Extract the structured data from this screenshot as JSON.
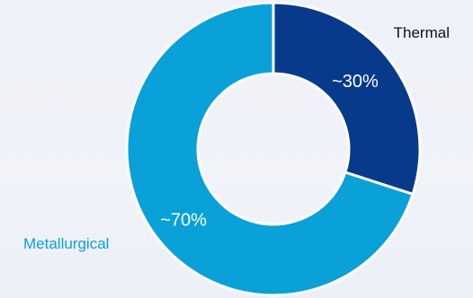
{
  "chart_data": {
    "type": "pie",
    "categories": [
      "Thermal",
      "Metallurgical"
    ],
    "values": [
      30,
      70
    ],
    "data_labels": [
      "~30%",
      "~70%"
    ],
    "colors": [
      "#083a8c",
      "#0aa0d8"
    ],
    "category_label_colors": [
      "#111111",
      "#0aa0d8"
    ],
    "data_label_color": "#ffffff",
    "donut": true
  }
}
